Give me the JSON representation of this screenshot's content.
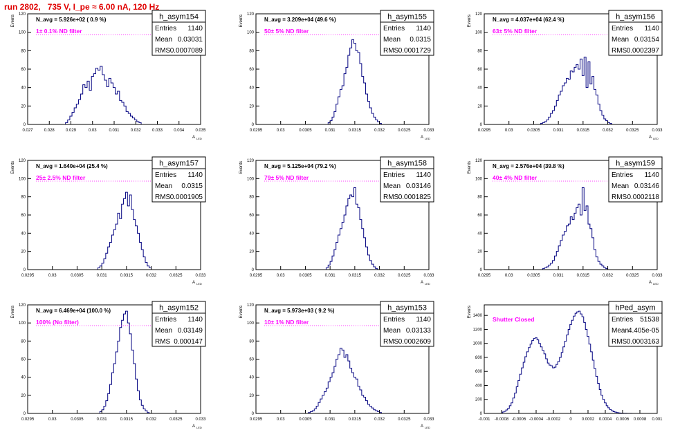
{
  "run_title": "run 2802,   735 V, I_pe ≈ 6.00 nA, 120 Hz",
  "stat_labels": {
    "entries": "Entries",
    "mean": "Mean",
    "rms": "RMS"
  },
  "chart_data": [
    {
      "type": "bar",
      "name": "h_asym154",
      "navg": "N_avg = 5.926e+02 ( 0.9 %)",
      "annotation": "1± 0.1% ND filter",
      "annotation_color": "#ff00ff",
      "stats": {
        "entries": "1140",
        "mean": "0.03031",
        "rms": "0.0007089"
      },
      "ylabel": "Events",
      "xlabel": "A",
      "xlabel_sub": "LED",
      "xlim": [
        0.027,
        0.035
      ],
      "ylim": [
        0,
        120
      ],
      "xticks": [
        0.027,
        0.028,
        0.029,
        0.03,
        0.031,
        0.032,
        0.033,
        0.034,
        0.035
      ],
      "xtick_labels": [
        "0.027",
        "0.028",
        "0.029",
        "0.03",
        "0.031",
        "0.032",
        "0.033",
        "0.034",
        "0.035"
      ],
      "yticks": [
        0,
        20,
        40,
        60,
        80,
        100,
        120
      ],
      "ytick_labels": [
        "0",
        "20",
        "40",
        "60",
        "80",
        "100",
        "120"
      ],
      "bin_width": 0.0001,
      "x": [
        0.0288,
        0.0289,
        0.029,
        0.0291,
        0.0292,
        0.0293,
        0.0294,
        0.0295,
        0.0296,
        0.0297,
        0.0298,
        0.0299,
        0.03,
        0.0301,
        0.0302,
        0.0303,
        0.0304,
        0.0305,
        0.0306,
        0.0307,
        0.0308,
        0.0309,
        0.031,
        0.0311,
        0.0312,
        0.0313,
        0.0314,
        0.0315,
        0.0316,
        0.0317,
        0.0318,
        0.0319,
        0.032,
        0.0321,
        0.0322
      ],
      "values": [
        2,
        5,
        9,
        13,
        18,
        22,
        27,
        33,
        43,
        40,
        47,
        37,
        52,
        55,
        61,
        59,
        63,
        54,
        48,
        41,
        50,
        45,
        40,
        33,
        36,
        26,
        24,
        20,
        14,
        12,
        9,
        7,
        5,
        3,
        2
      ]
    },
    {
      "type": "bar",
      "name": "h_asym155",
      "navg": "N_avg = 3.209e+04 (49.6 %)",
      "annotation": "50± 5% ND filter",
      "annotation_color": "#ff00ff",
      "stats": {
        "entries": "1140",
        "mean": "0.0315",
        "rms": "0.0001729"
      },
      "ylabel": "Events",
      "xlabel": "A",
      "xlabel_sub": "LED",
      "xlim": [
        0.0295,
        0.033
      ],
      "ylim": [
        0,
        120
      ],
      "xticks": [
        0.0295,
        0.03,
        0.0305,
        0.031,
        0.0315,
        0.032,
        0.0325,
        0.033
      ],
      "xtick_labels": [
        "0.0295",
        "0.03",
        "0.0305",
        "0.031",
        "0.0315",
        "0.032",
        "0.0325",
        "0.033"
      ],
      "yticks": [
        0,
        20,
        40,
        60,
        80,
        100,
        120
      ],
      "ytick_labels": [
        "0",
        "20",
        "40",
        "60",
        "80",
        "100",
        "120"
      ],
      "bin_width": 4e-05,
      "x": [
        0.03098,
        0.03102,
        0.03106,
        0.0311,
        0.03114,
        0.03118,
        0.03122,
        0.03126,
        0.0313,
        0.03134,
        0.03138,
        0.03142,
        0.03146,
        0.0315,
        0.03154,
        0.03158,
        0.03162,
        0.03166,
        0.0317,
        0.03174,
        0.03178,
        0.03182,
        0.03186,
        0.0319,
        0.03194,
        0.03198,
        0.03202
      ],
      "values": [
        2,
        4,
        8,
        14,
        22,
        30,
        38,
        42,
        55,
        62,
        75,
        83,
        92,
        88,
        80,
        78,
        66,
        52,
        45,
        33,
        25,
        18,
        12,
        8,
        5,
        3,
        1
      ]
    },
    {
      "type": "bar",
      "name": "h_asym156",
      "navg": "N_avg = 4.037e+04 (62.4 %)",
      "annotation": "63± 5% ND filter",
      "annotation_color": "#ff00ff",
      "stats": {
        "entries": "1140",
        "mean": "0.03154",
        "rms": "0.0002397"
      },
      "ylabel": "Events",
      "xlabel": "A",
      "xlabel_sub": "LED",
      "xlim": [
        0.0295,
        0.033
      ],
      "ylim": [
        0,
        120
      ],
      "xticks": [
        0.0295,
        0.03,
        0.0305,
        0.031,
        0.0315,
        0.032,
        0.0325,
        0.033
      ],
      "xtick_labels": [
        "0.0295",
        "0.03",
        "0.0305",
        "0.031",
        "0.0315",
        "0.032",
        "0.0325",
        "0.033"
      ],
      "yticks": [
        0,
        20,
        40,
        60,
        80,
        100,
        120
      ],
      "ytick_labels": [
        "0",
        "20",
        "40",
        "60",
        "80",
        "100",
        "120"
      ],
      "bin_width": 4e-05,
      "x": [
        0.03066,
        0.0307,
        0.03074,
        0.03078,
        0.03082,
        0.03086,
        0.0309,
        0.03094,
        0.03098,
        0.03102,
        0.03106,
        0.0311,
        0.03114,
        0.03118,
        0.03122,
        0.03126,
        0.0313,
        0.03134,
        0.03138,
        0.03142,
        0.03146,
        0.0315,
        0.03154,
        0.03158,
        0.03162,
        0.03166,
        0.0317,
        0.03174,
        0.03178,
        0.03182,
        0.03186,
        0.0319,
        0.03194,
        0.03198,
        0.03202,
        0.03206
      ],
      "values": [
        1,
        2,
        3,
        5,
        8,
        12,
        15,
        20,
        26,
        32,
        36,
        42,
        45,
        50,
        49,
        58,
        57,
        62,
        65,
        60,
        71,
        53,
        73,
        40,
        68,
        44,
        52,
        38,
        32,
        22,
        15,
        10,
        6,
        4,
        2,
        1
      ]
    },
    {
      "type": "bar",
      "name": "h_asym157",
      "navg": "N_avg = 1.640e+04 (25.4 %)",
      "annotation": "25± 2.5% ND filter",
      "annotation_color": "#ff00ff",
      "stats": {
        "entries": "1140",
        "mean": "0.0315",
        "rms": "0.0001905"
      },
      "ylabel": "Events",
      "xlabel": "A",
      "xlabel_sub": "LED",
      "xlim": [
        0.0295,
        0.033
      ],
      "ylim": [
        0,
        120
      ],
      "xticks": [
        0.0295,
        0.03,
        0.0305,
        0.031,
        0.0315,
        0.032,
        0.0325,
        0.033
      ],
      "xtick_labels": [
        "0.0295",
        "0.03",
        "0.0305",
        "0.031",
        "0.0315",
        "0.032",
        "0.0325",
        "0.033"
      ],
      "yticks": [
        0,
        20,
        40,
        60,
        80,
        100,
        120
      ],
      "ytick_labels": [
        "0",
        "20",
        "40",
        "60",
        "80",
        "100",
        "120"
      ],
      "bin_width": 4e-05,
      "x": [
        0.03094,
        0.03098,
        0.03102,
        0.03106,
        0.0311,
        0.03114,
        0.03118,
        0.03122,
        0.03126,
        0.0313,
        0.03134,
        0.03138,
        0.03142,
        0.03146,
        0.0315,
        0.03154,
        0.03158,
        0.03162,
        0.03166,
        0.0317,
        0.03174,
        0.03178,
        0.03182,
        0.03186,
        0.0319,
        0.03194,
        0.03198
      ],
      "values": [
        2,
        4,
        7,
        12,
        18,
        25,
        30,
        38,
        44,
        50,
        62,
        56,
        72,
        78,
        85,
        70,
        82,
        66,
        55,
        48,
        40,
        30,
        22,
        14,
        8,
        4,
        2
      ]
    },
    {
      "type": "bar",
      "name": "h_asym158",
      "navg": "N_avg = 5.125e+04 (79.2 %)",
      "annotation": "79± 5% ND filter",
      "annotation_color": "#ff00ff",
      "stats": {
        "entries": "1140",
        "mean": "0.03146",
        "rms": "0.0001825"
      },
      "ylabel": "Events",
      "xlabel": "A",
      "xlabel_sub": "LED",
      "xlim": [
        0.0295,
        0.033
      ],
      "ylim": [
        0,
        120
      ],
      "xticks": [
        0.0295,
        0.03,
        0.0305,
        0.031,
        0.0315,
        0.032,
        0.0325,
        0.033
      ],
      "xtick_labels": [
        "0.0295",
        "0.03",
        "0.0305",
        "0.031",
        "0.0315",
        "0.032",
        "0.0325",
        "0.033"
      ],
      "yticks": [
        0,
        20,
        40,
        60,
        80,
        100,
        120
      ],
      "ytick_labels": [
        "0",
        "20",
        "40",
        "60",
        "80",
        "100",
        "120"
      ],
      "bin_width": 4e-05,
      "x": [
        0.03094,
        0.03098,
        0.03102,
        0.03106,
        0.0311,
        0.03114,
        0.03118,
        0.03122,
        0.03126,
        0.0313,
        0.03134,
        0.03138,
        0.03142,
        0.03146,
        0.0315,
        0.03154,
        0.03158,
        0.03162,
        0.03166,
        0.0317,
        0.03174,
        0.03178,
        0.03182,
        0.03186,
        0.0319,
        0.03194
      ],
      "values": [
        2,
        5,
        9,
        15,
        22,
        30,
        38,
        45,
        52,
        60,
        70,
        78,
        82,
        80,
        90,
        72,
        68,
        55,
        45,
        35,
        25,
        16,
        10,
        6,
        3,
        1
      ]
    },
    {
      "type": "bar",
      "name": "h_asym159",
      "navg": "N_avg = 2.576e+04 (39.8 %)",
      "annotation": "40± 4% ND filter",
      "annotation_color": "#ff00ff",
      "stats": {
        "entries": "1140",
        "mean": "0.03146",
        "rms": "0.0002118"
      },
      "ylabel": "Events",
      "xlabel": "A",
      "xlabel_sub": "LED",
      "xlim": [
        0.0295,
        0.033
      ],
      "ylim": [
        0,
        120
      ],
      "xticks": [
        0.0295,
        0.03,
        0.0305,
        0.031,
        0.0315,
        0.032,
        0.0325,
        0.033
      ],
      "xtick_labels": [
        "0.0295",
        "0.03",
        "0.0305",
        "0.031",
        "0.0315",
        "0.032",
        "0.0325",
        "0.033"
      ],
      "yticks": [
        0,
        20,
        40,
        60,
        80,
        100,
        120
      ],
      "ytick_labels": [
        "0",
        "20",
        "40",
        "60",
        "80",
        "100",
        "120"
      ],
      "bin_width": 4e-05,
      "x": [
        0.0307,
        0.03074,
        0.03078,
        0.03082,
        0.03086,
        0.0309,
        0.03094,
        0.03098,
        0.03102,
        0.03106,
        0.0311,
        0.03114,
        0.03118,
        0.03122,
        0.03126,
        0.0313,
        0.03134,
        0.03138,
        0.03142,
        0.03146,
        0.0315,
        0.03154,
        0.03158,
        0.03162,
        0.03166,
        0.0317,
        0.03174,
        0.03178,
        0.03182,
        0.03186,
        0.0319,
        0.03194,
        0.03198
      ],
      "values": [
        1,
        2,
        3,
        5,
        7,
        10,
        15,
        20,
        26,
        32,
        38,
        42,
        48,
        50,
        58,
        55,
        62,
        68,
        72,
        60,
        90,
        65,
        70,
        50,
        45,
        35,
        22,
        14,
        9,
        6,
        4,
        2,
        1
      ]
    },
    {
      "type": "bar",
      "name": "h_asym152",
      "navg": "N_avg = 6.469e+04 (100.0 %)",
      "annotation": "100% (No filter)",
      "annotation_color": "#ff00ff",
      "stats": {
        "entries": "1140",
        "mean": "0.03149",
        "rms": "0.000147"
      },
      "ylabel": "Events",
      "xlabel": "A",
      "xlabel_sub": "LED",
      "xlim": [
        0.0295,
        0.033
      ],
      "ylim": [
        0,
        120
      ],
      "xticks": [
        0.0295,
        0.03,
        0.0305,
        0.031,
        0.0315,
        0.032,
        0.0325,
        0.033
      ],
      "xtick_labels": [
        "0.0295",
        "0.03",
        "0.0305",
        "0.031",
        "0.0315",
        "0.032",
        "0.0325",
        "0.033"
      ],
      "yticks": [
        0,
        20,
        40,
        60,
        80,
        100,
        120
      ],
      "ytick_labels": [
        "0",
        "20",
        "40",
        "60",
        "80",
        "100",
        "120"
      ],
      "bin_width": 4e-05,
      "x": [
        0.03098,
        0.03102,
        0.03106,
        0.0311,
        0.03114,
        0.03118,
        0.03122,
        0.03126,
        0.0313,
        0.03134,
        0.03138,
        0.03142,
        0.03146,
        0.0315,
        0.03154,
        0.03158,
        0.03162,
        0.03166,
        0.0317,
        0.03174,
        0.03178,
        0.03182,
        0.03186,
        0.0319,
        0.03194
      ],
      "values": [
        2,
        4,
        8,
        14,
        22,
        32,
        45,
        55,
        68,
        80,
        95,
        103,
        110,
        113,
        100,
        88,
        70,
        55,
        38,
        25,
        15,
        9,
        5,
        3,
        1
      ]
    },
    {
      "type": "bar",
      "name": "h_asym153",
      "navg": "N_avg = 5.973e+03 ( 9.2 %)",
      "annotation": "10± 1% ND filter",
      "annotation_color": "#ff00ff",
      "stats": {
        "entries": "1140",
        "mean": "0.03133",
        "rms": "0.0002609"
      },
      "ylabel": "Events",
      "xlabel": "A",
      "xlabel_sub": "LED",
      "xlim": [
        0.0295,
        0.033
      ],
      "ylim": [
        0,
        120
      ],
      "xticks": [
        0.0295,
        0.03,
        0.0305,
        0.031,
        0.0315,
        0.032,
        0.0325,
        0.033
      ],
      "xtick_labels": [
        "0.0295",
        "0.03",
        "0.0305",
        "0.031",
        "0.0315",
        "0.032",
        "0.0325",
        "0.033"
      ],
      "yticks": [
        0,
        20,
        40,
        60,
        80,
        100,
        120
      ],
      "ytick_labels": [
        "0",
        "20",
        "40",
        "60",
        "80",
        "100",
        "120"
      ],
      "bin_width": 4e-05,
      "x": [
        0.03058,
        0.03062,
        0.03066,
        0.0307,
        0.03074,
        0.03078,
        0.03082,
        0.03086,
        0.0309,
        0.03094,
        0.03098,
        0.03102,
        0.03106,
        0.0311,
        0.03114,
        0.03118,
        0.03122,
        0.03126,
        0.0313,
        0.03134,
        0.03138,
        0.03142,
        0.03146,
        0.0315,
        0.03154,
        0.03158,
        0.03162,
        0.03166,
        0.0317,
        0.03174,
        0.03178,
        0.03182,
        0.03186,
        0.0319,
        0.03194,
        0.03198,
        0.03202
      ],
      "values": [
        1,
        2,
        3,
        5,
        8,
        12,
        16,
        20,
        24,
        28,
        35,
        40,
        45,
        52,
        60,
        65,
        72,
        70,
        62,
        65,
        58,
        50,
        45,
        40,
        38,
        30,
        26,
        20,
        18,
        14,
        10,
        8,
        6,
        4,
        3,
        2,
        1
      ]
    },
    {
      "type": "bar",
      "name": "hPed_asym",
      "navg": "",
      "annotation": "Shutter Closed",
      "annotation_color": "#ff00ff",
      "stats": {
        "entries": "51538",
        "mean": "4.405e-05",
        "rms": "0.0003163"
      },
      "ylabel": "Events",
      "xlabel": "",
      "xlabel_sub": "",
      "xlim": [
        -0.001,
        0.001
      ],
      "ylim": [
        0,
        1550
      ],
      "xticks": [
        -0.001,
        -0.0008,
        -0.0006,
        -0.0004,
        -0.0002,
        0,
        0.0002,
        0.0004,
        0.0006,
        0.0008,
        0.001
      ],
      "xtick_labels": [
        "-0.001",
        "-0.0008",
        "-0.0006",
        "-0.0004",
        "-0.0002",
        "0",
        "0.0002",
        "0.0004",
        "0.0006",
        "0.0008",
        "0.001"
      ],
      "yticks": [
        0,
        200,
        400,
        600,
        800,
        1000,
        1200,
        1400
      ],
      "ytick_labels": [
        "0",
        "200",
        "400",
        "600",
        "800",
        "1000",
        "1200",
        "1400"
      ],
      "bin_width": 2e-05,
      "x": [
        -0.00078,
        -0.00076,
        -0.00074,
        -0.00072,
        -0.0007,
        -0.00068,
        -0.00066,
        -0.00064,
        -0.00062,
        -0.0006,
        -0.00058,
        -0.00056,
        -0.00054,
        -0.00052,
        -0.0005,
        -0.00048,
        -0.00046,
        -0.00044,
        -0.00042,
        -0.0004,
        -0.00038,
        -0.00036,
        -0.00034,
        -0.00032,
        -0.0003,
        -0.00028,
        -0.00026,
        -0.00024,
        -0.00022,
        -0.0002,
        -0.00018,
        -0.00016,
        -0.00014,
        -0.00012,
        -0.0001,
        -8e-05,
        -6e-05,
        -4e-05,
        -2e-05,
        0,
        2e-05,
        4e-05,
        6e-05,
        8e-05,
        0.0001,
        0.00012,
        0.00014,
        0.00016,
        0.00018,
        0.0002,
        0.00022,
        0.00024,
        0.00026,
        0.00028,
        0.0003,
        0.00032,
        0.00034,
        0.00036,
        0.00038,
        0.0004,
        0.00042,
        0.00044,
        0.00046,
        0.00048,
        0.0005,
        0.00052,
        0.00054,
        0.00056,
        0.00058,
        0.0006,
        0.00062,
        0.00064,
        0.00066,
        0.00068,
        0.0007,
        0.00072,
        0.00074,
        0.00076,
        0.00078
      ],
      "values": [
        20,
        30,
        50,
        70,
        110,
        150,
        220,
        290,
        380,
        470,
        560,
        650,
        730,
        810,
        880,
        940,
        990,
        1040,
        1070,
        1080,
        1050,
        1000,
        950,
        900,
        850,
        780,
        720,
        690,
        680,
        650,
        660,
        700,
        740,
        800,
        870,
        950,
        1030,
        1120,
        1200,
        1270,
        1330,
        1390,
        1430,
        1450,
        1460,
        1420,
        1380,
        1300,
        1200,
        1100,
        990,
        880,
        760,
        640,
        530,
        430,
        340,
        260,
        200,
        150,
        110,
        80,
        55,
        38,
        25,
        18,
        12,
        8,
        5,
        4,
        3,
        2,
        1,
        1,
        1,
        0,
        0,
        0,
        0
      ]
    }
  ]
}
